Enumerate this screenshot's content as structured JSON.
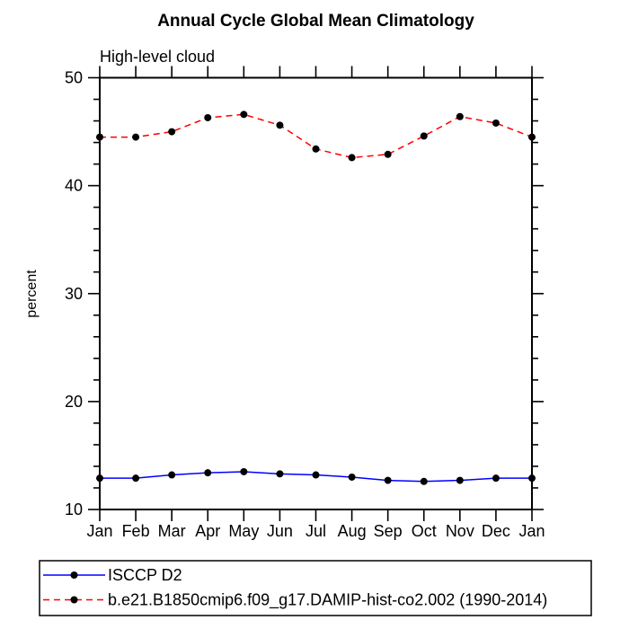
{
  "page": {
    "background": "#ffffff",
    "text_color": "#000000"
  },
  "chart_data": {
    "type": "line",
    "title": "Annual Cycle Global Mean Climatology",
    "subtitle": "High-level cloud",
    "xlabel": "",
    "ylabel": "percent",
    "ylim": [
      10,
      50
    ],
    "yticks_major": [
      10,
      20,
      30,
      40,
      50
    ],
    "ytick_minor_step": 2,
    "grid": false,
    "legend_position": "bottom-left",
    "axis_color": "#000000",
    "marker_color": "#000000",
    "categories": [
      "Jan",
      "Feb",
      "Mar",
      "Apr",
      "May",
      "Jun",
      "Jul",
      "Aug",
      "Sep",
      "Oct",
      "Nov",
      "Dec",
      "Jan"
    ],
    "series": [
      {
        "name": "ISCCP D2",
        "color": "#0000ff",
        "line_style": "solid",
        "marker": "circle",
        "values": [
          12.9,
          12.9,
          13.2,
          13.4,
          13.5,
          13.3,
          13.2,
          13.0,
          12.7,
          12.6,
          12.7,
          12.9,
          12.9
        ]
      },
      {
        "name": "b.e21.B1850cmip6.f09_g17.DAMIP-hist-co2.002 (1990-2014)",
        "color": "#ff0000",
        "line_style": "dashed",
        "marker": "circle",
        "values": [
          44.5,
          44.5,
          45.0,
          46.3,
          46.6,
          45.6,
          43.4,
          42.6,
          42.9,
          44.6,
          46.4,
          45.8,
          44.5
        ]
      }
    ]
  }
}
